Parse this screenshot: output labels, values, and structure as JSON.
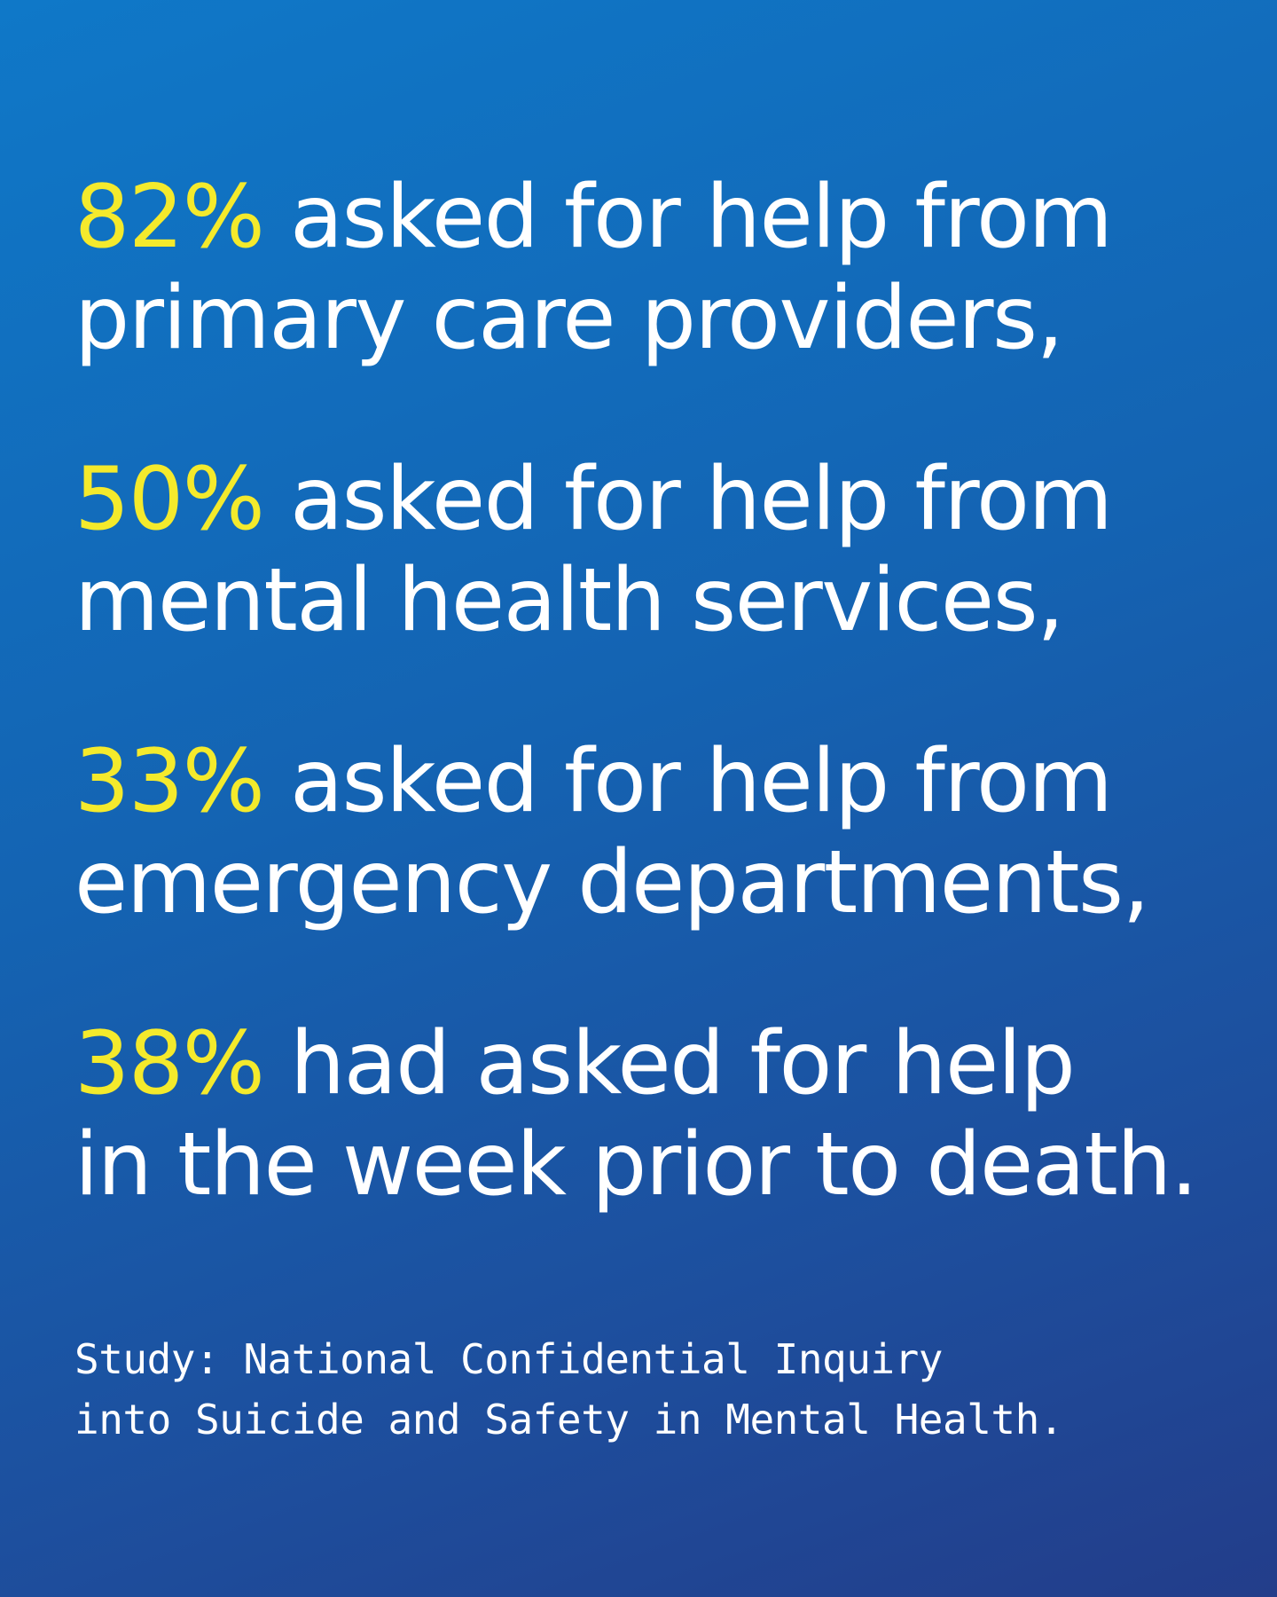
{
  "colors": {
    "background_start": "#0f78c8",
    "background_end": "#233d8a",
    "accent": "#f4ea2c",
    "text": "#ffffff"
  },
  "stats": [
    {
      "percent": "82%",
      "line1_rest": "asked for help from",
      "line2": "primary care providers,"
    },
    {
      "percent": "50%",
      "line1_rest": "asked for help from",
      "line2": "mental health services,"
    },
    {
      "percent": "33%",
      "line1_rest": "asked for help from",
      "line2": "emergency departments,"
    },
    {
      "percent": "38%",
      "line1_rest": "had asked for help",
      "line2": "in the week prior to death."
    }
  ],
  "source": {
    "line1": "Study: National Confidential Inquiry",
    "line2": "into Suicide and Safety in Mental Health."
  }
}
